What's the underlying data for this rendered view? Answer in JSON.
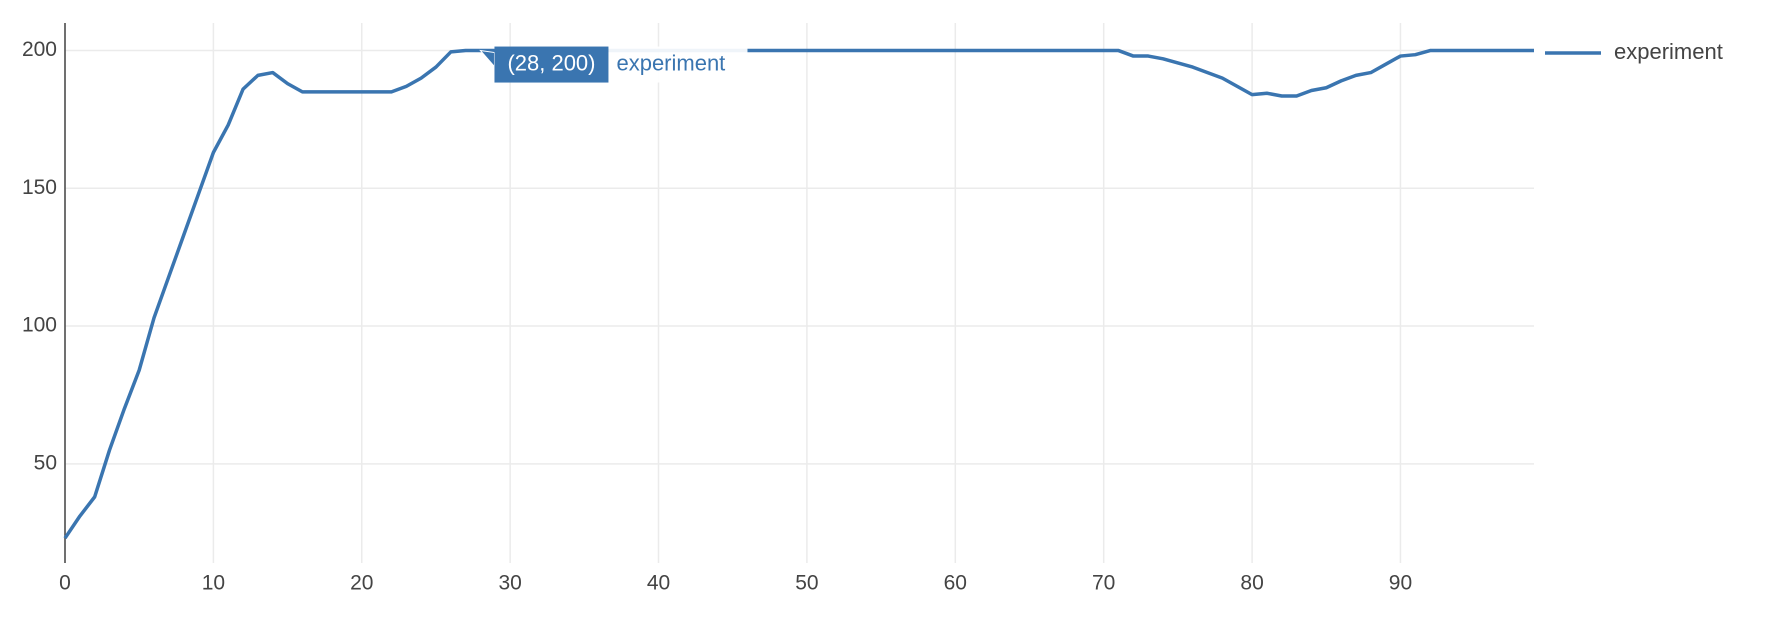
{
  "chart_data": {
    "type": "line",
    "x": [
      0,
      1,
      2,
      3,
      4,
      5,
      6,
      7,
      8,
      9,
      10,
      11,
      12,
      13,
      14,
      15,
      16,
      17,
      18,
      19,
      20,
      21,
      22,
      23,
      24,
      25,
      26,
      27,
      28,
      29,
      30,
      31,
      32,
      33,
      34,
      35,
      36,
      37,
      38,
      39,
      40,
      41,
      42,
      43,
      44,
      45,
      46,
      47,
      48,
      49,
      50,
      51,
      52,
      53,
      54,
      55,
      56,
      57,
      58,
      59,
      60,
      61,
      62,
      63,
      64,
      65,
      66,
      67,
      68,
      69,
      70,
      71,
      72,
      73,
      74,
      75,
      76,
      77,
      78,
      79,
      80,
      81,
      82,
      83,
      84,
      85,
      86,
      87,
      88,
      89,
      90,
      91,
      92,
      93,
      94,
      95,
      96,
      97,
      98,
      99
    ],
    "series": [
      {
        "name": "experiment",
        "color": "#3a75b0",
        "values": [
          23,
          31,
          38,
          55,
          70,
          84,
          103,
          118,
          133,
          148,
          163,
          173,
          186,
          191,
          192,
          188,
          185,
          185,
          185,
          185,
          185,
          185,
          185,
          187,
          190,
          194,
          199.5,
          200,
          200,
          200,
          200,
          200,
          200,
          200,
          200,
          200,
          200,
          200,
          200,
          200,
          200,
          200,
          200,
          200,
          200,
          200,
          200,
          200,
          200,
          200,
          200,
          200,
          200,
          200,
          200,
          200,
          200,
          200,
          200,
          200,
          200,
          200,
          200,
          200,
          200,
          200,
          200,
          200,
          200,
          200,
          200,
          200,
          198,
          198,
          197,
          195.5,
          194,
          192,
          190,
          187,
          184,
          184.5,
          183.5,
          183.5,
          185.5,
          186.5,
          189,
          191,
          192,
          195,
          198,
          198.5,
          200,
          200,
          200,
          200,
          200,
          200,
          200,
          200
        ]
      }
    ],
    "xlim": [
      0,
      99
    ],
    "ylim": [
      14,
      210
    ],
    "xticks": [
      0,
      10,
      20,
      30,
      40,
      50,
      60,
      70,
      80,
      90
    ],
    "yticks": [
      50,
      100,
      150,
      200
    ],
    "grid": true,
    "legend": "right",
    "hover": {
      "x": 28,
      "y": 200,
      "text": "(28, 200)"
    }
  }
}
